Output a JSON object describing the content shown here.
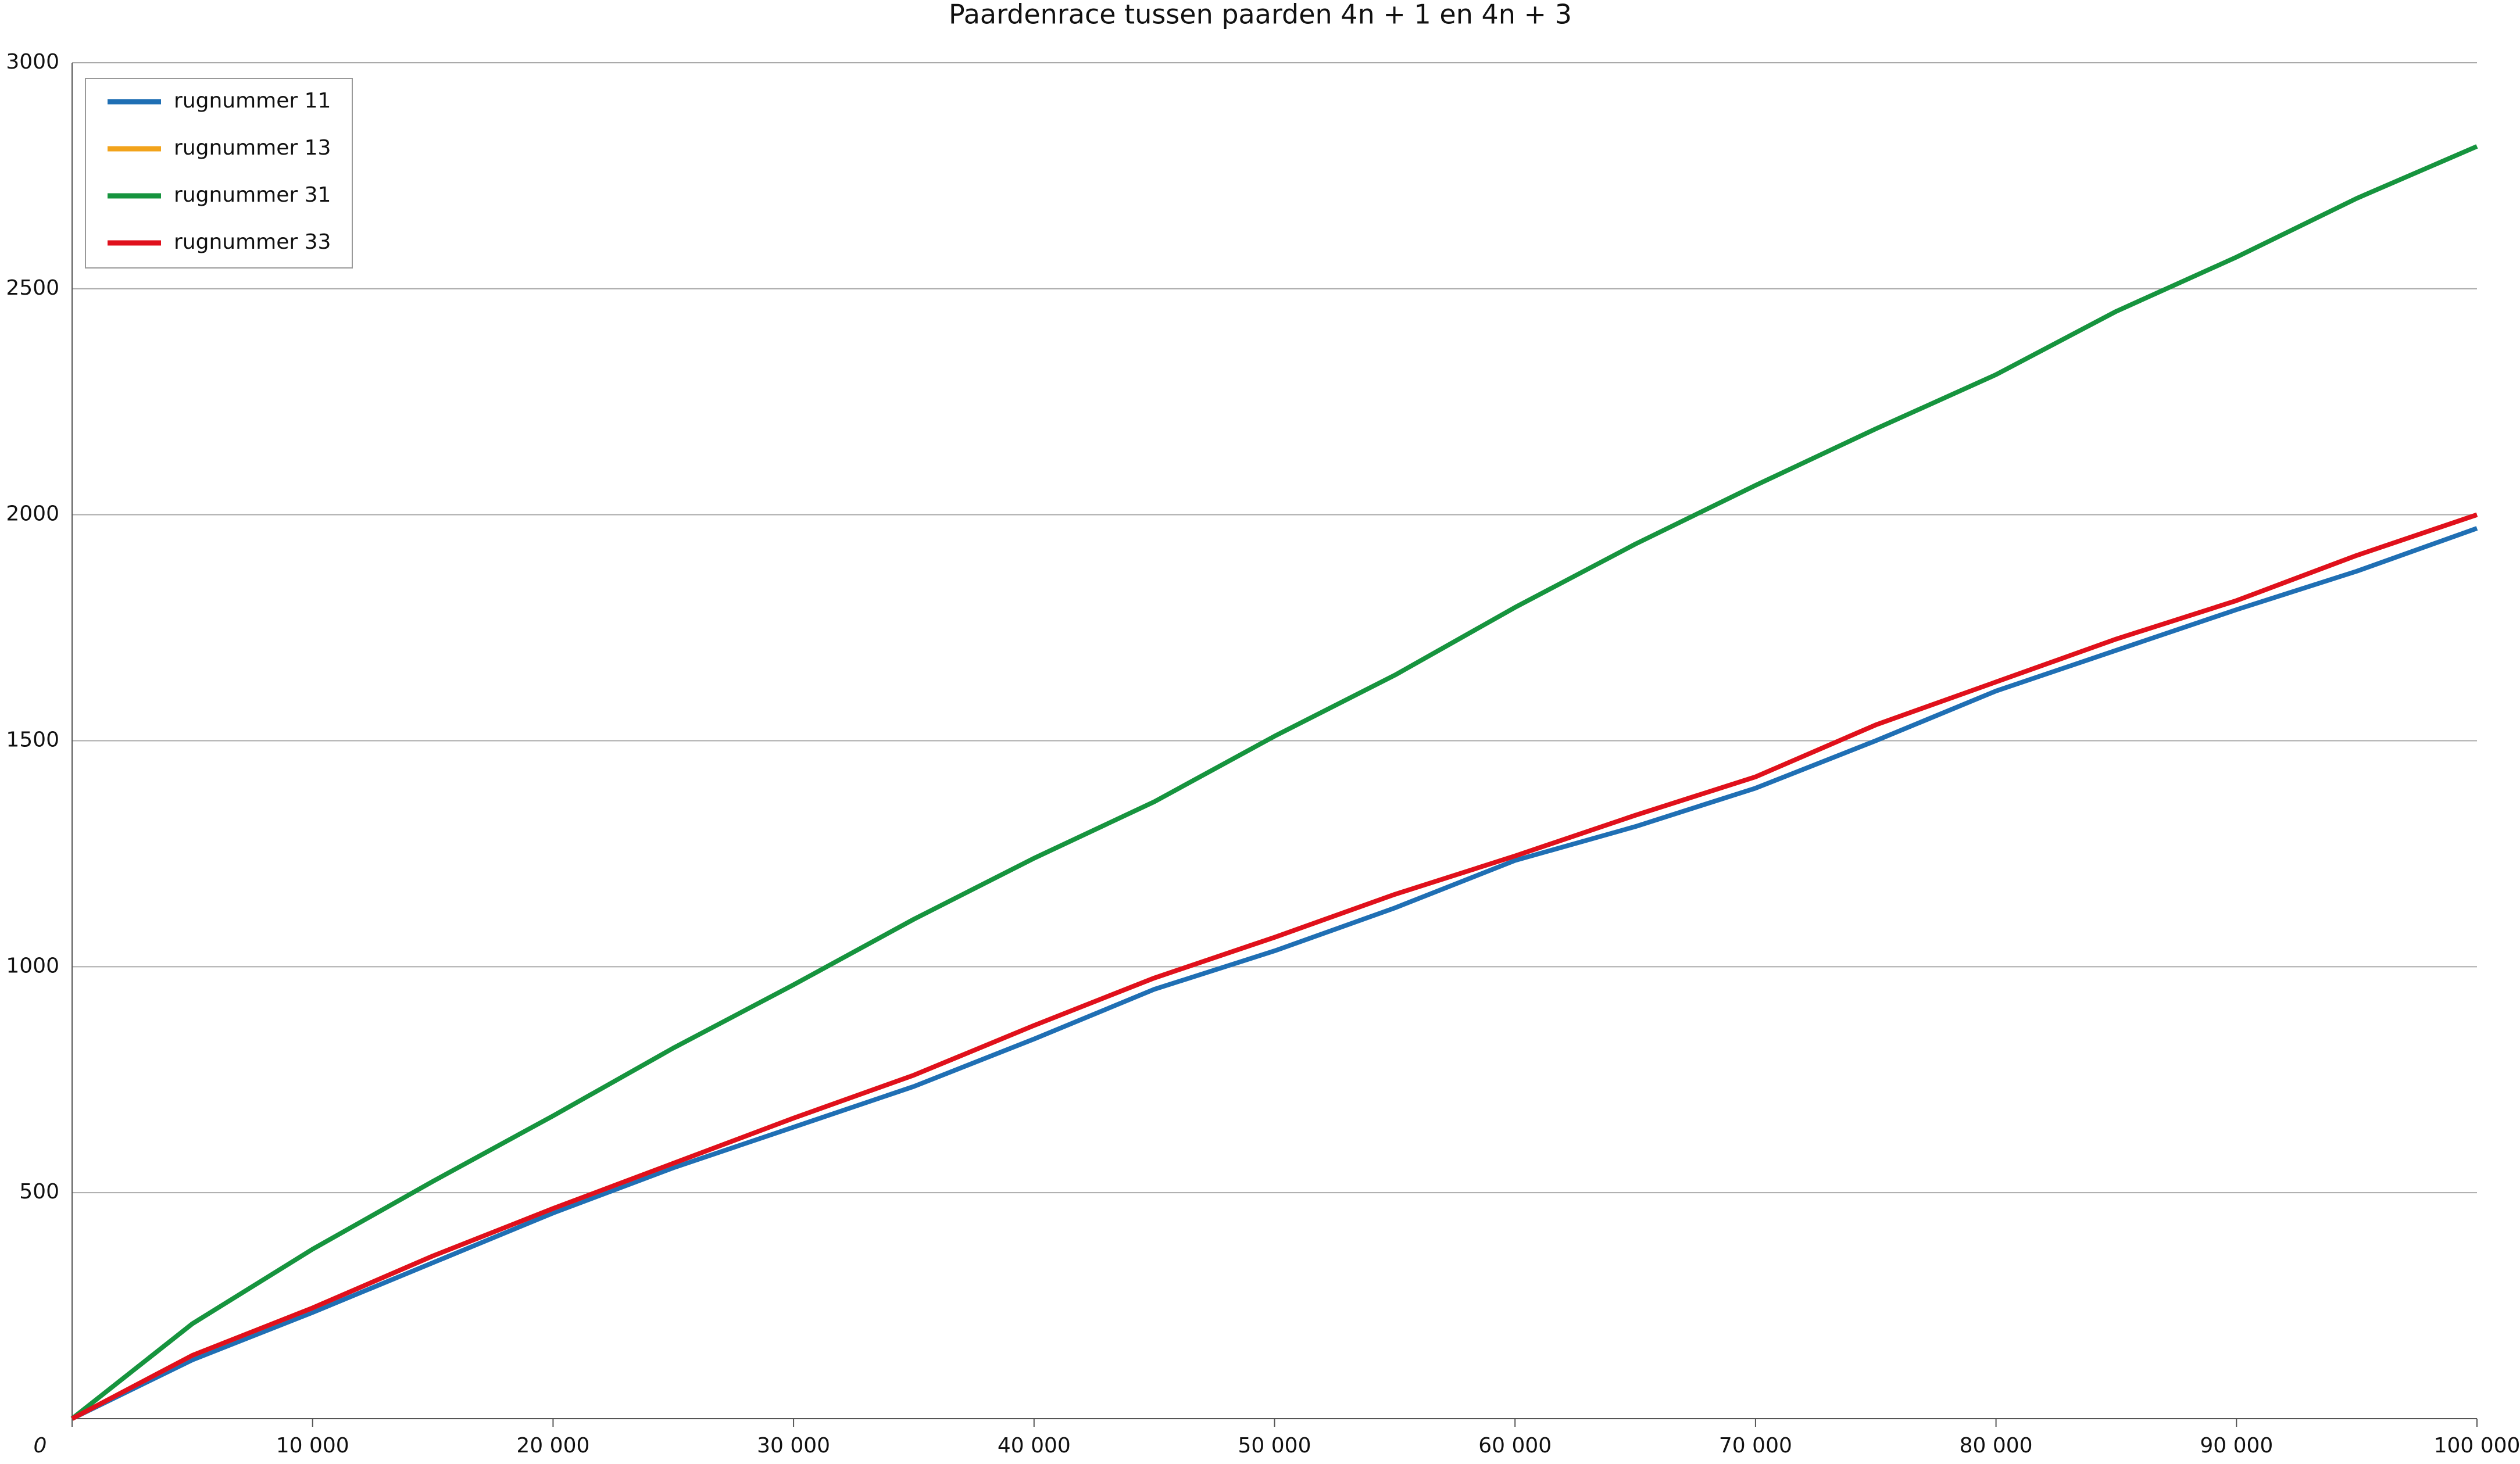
{
  "chart_data": {
    "type": "line",
    "title": "Paardenrace tussen paarden 4n + 1 en 4n + 3",
    "x": [
      0,
      5000,
      10000,
      15000,
      20000,
      25000,
      30000,
      35000,
      40000,
      45000,
      50000,
      55000,
      60000,
      65000,
      70000,
      75000,
      80000,
      85000,
      90000,
      95000,
      100000
    ],
    "series": [
      {
        "name": "rugnummer 11",
        "color": "#1f6fb4",
        "values": [
          0,
          130,
          235,
          345,
          455,
          555,
          645,
          735,
          840,
          950,
          1035,
          1130,
          1235,
          1310,
          1395,
          1500,
          1610,
          1700,
          1790,
          1875,
          1970
        ]
      },
      {
        "name": "rugnummer 13",
        "color": "#f2a31b",
        "values": [
          0,
          140,
          245,
          360,
          465,
          565,
          665,
          760,
          870,
          975,
          1065,
          1160,
          1245,
          1335,
          1420,
          1535,
          1630,
          1725,
          1810,
          1910,
          2000
        ]
      },
      {
        "name": "rugnummer 31",
        "color": "#16943e",
        "values": [
          0,
          210,
          375,
          525,
          670,
          820,
          960,
          1105,
          1240,
          1365,
          1510,
          1645,
          1795,
          1935,
          2065,
          2190,
          2310,
          2450,
          2570,
          2700,
          2815
        ]
      },
      {
        "name": "rugnummer 33",
        "color": "#e0101c",
        "values": [
          0,
          140,
          245,
          360,
          465,
          565,
          665,
          760,
          870,
          975,
          1065,
          1160,
          1245,
          1335,
          1420,
          1535,
          1630,
          1725,
          1810,
          1910,
          2000
        ]
      }
    ],
    "xlim": [
      0,
      100000
    ],
    "xticks": [
      0,
      {
        "value": 10000,
        "label": "10 000"
      },
      {
        "value": 20000,
        "label": "20 000"
      },
      {
        "value": 30000,
        "label": "30 000"
      },
      {
        "value": 40000,
        "label": "40 000"
      },
      {
        "value": 50000,
        "label": "50 000"
      },
      {
        "value": 60000,
        "label": "60 000"
      },
      {
        "value": 70000,
        "label": "70 000"
      },
      {
        "value": 80000,
        "label": "80 000"
      },
      {
        "value": 90000,
        "label": "90 000"
      },
      {
        "value": 100000,
        "label": "100 000"
      }
    ],
    "ylim": [
      0,
      3000
    ],
    "yticks": [
      500,
      1000,
      1500,
      2000,
      2500,
      3000
    ],
    "grid": true,
    "legend": "upper left"
  }
}
